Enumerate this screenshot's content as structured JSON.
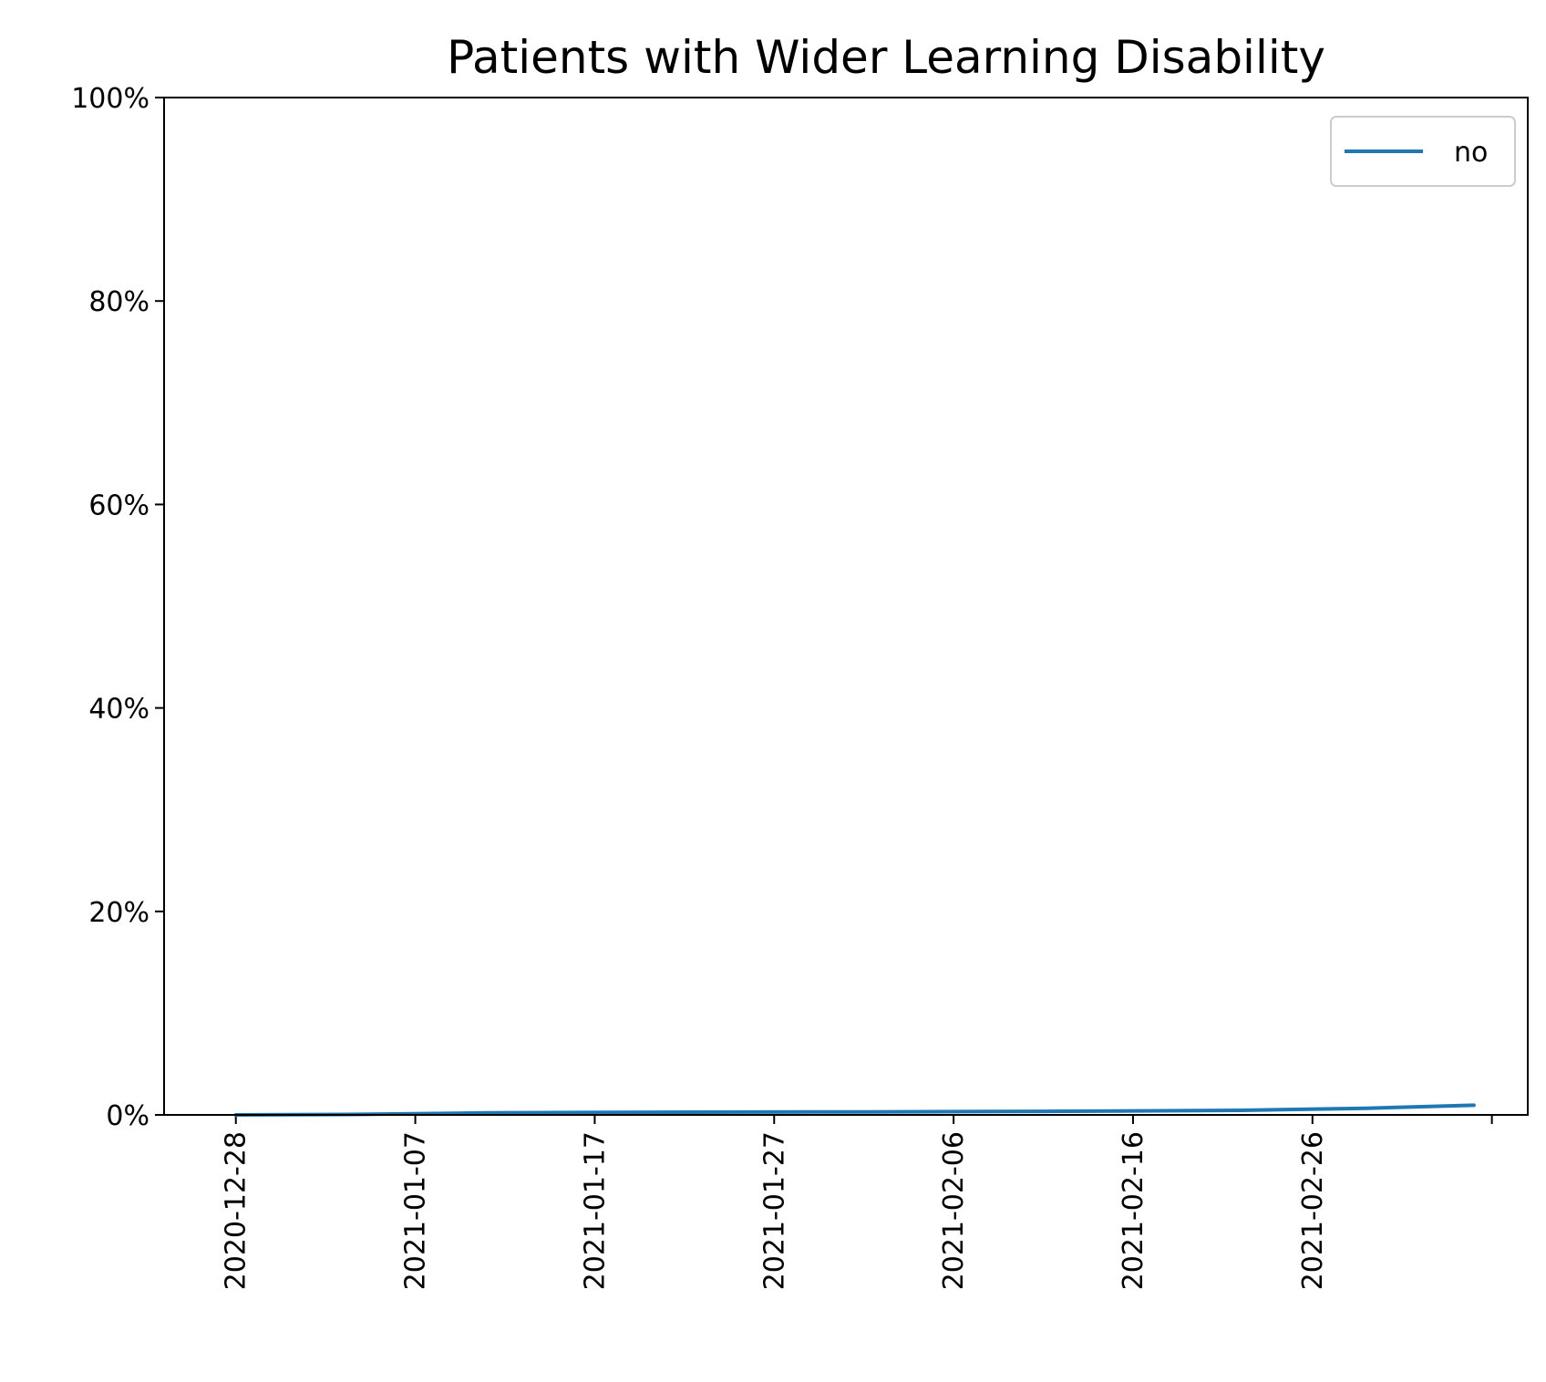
{
  "chart_data": {
    "type": "line",
    "title": "Patients with Wider Learning Disability",
    "xlabel": "",
    "ylabel": "",
    "ylim": [
      0,
      100
    ],
    "y_ticks": [
      0,
      20,
      40,
      60,
      80,
      100
    ],
    "y_tick_labels": [
      "0%",
      "20%",
      "40%",
      "60%",
      "80%",
      "100%"
    ],
    "x_tick_dates": [
      "2020-12-28",
      "2021-01-07",
      "2021-01-17",
      "2021-01-27",
      "2021-02-06",
      "2021-02-16",
      "2021-02-26",
      "2021-03-08"
    ],
    "x_tick_labels": [
      "2020-12-28",
      "2021-01-07",
      "2021-01-17",
      "2021-01-27",
      "2021-02-06",
      "2021-02-16",
      "2021-02-26",
      ""
    ],
    "xlim": [
      "2020-12-24",
      "2021-03-10"
    ],
    "grid": false,
    "legend_position": "top-right",
    "x": [
      "2020-12-28",
      "2021-01-04",
      "2021-01-11",
      "2021-01-18",
      "2021-01-25",
      "2021-02-01",
      "2021-02-08",
      "2021-02-15",
      "2021-02-22",
      "2021-03-01",
      "2021-03-07"
    ],
    "series": [
      {
        "name": "no",
        "color": "#1f77b4",
        "values": [
          0.0,
          0.05,
          0.2,
          0.25,
          0.28,
          0.3,
          0.33,
          0.38,
          0.45,
          0.65,
          0.95
        ]
      }
    ]
  }
}
